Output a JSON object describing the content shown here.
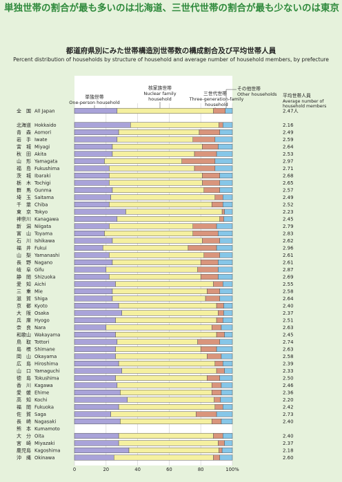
{
  "headline": "単独世帯の割合が最も多いのは北海道、三世代世帯の割合が最も少ないのは東京",
  "chart_data": {
    "type": "bar",
    "stacked": true,
    "orientation": "horizontal",
    "title": "都道府県別にみた世帯構造別世帯数の構成割合及び平均世帯人員",
    "subtitle": "Percent distribution of households by structure of household and average number of household members, by prefecture",
    "series": [
      {
        "name_ja": "単独世帯",
        "name_en": "One-person household",
        "color": "#a9a3d9"
      },
      {
        "name_ja": "核家族世帯",
        "name_en": "Nuclear family household",
        "color": "#f5f0a0"
      },
      {
        "name_ja": "三世代世帯",
        "name_en": "Three-generation-family household",
        "color": "#d9957c"
      },
      {
        "name_ja": "その他世帯",
        "name_en": "Other households",
        "color": "#86c6e8"
      }
    ],
    "avg_header_ja": "平均世帯人員",
    "avg_header_en": "Average number of household members",
    "xticks": [
      "0",
      "20",
      "40",
      "60",
      "80",
      "100%"
    ],
    "xlim": [
      0,
      100
    ],
    "rows": [
      {
        "ja": "全　国",
        "en": "All Japan",
        "avg": "2.47人",
        "values": [
          27,
          61,
          7.5,
          4.5
        ]
      },
      {
        "ja": "北海道",
        "en": "Hokkaido",
        "avg": "2.16",
        "values": [
          35.5,
          56,
          2.5,
          6
        ]
      },
      {
        "ja": "青　森",
        "en": "Aomori",
        "avg": "2.49",
        "values": [
          28,
          51,
          13,
          8
        ]
      },
      {
        "ja": "岩　手",
        "en": "Iwate",
        "avg": "2.59",
        "values": [
          27,
          48,
          14,
          11
        ]
      },
      {
        "ja": "宮　城",
        "en": "Miyagi",
        "avg": "2.64",
        "values": [
          24,
          57,
          10,
          9
        ]
      },
      {
        "ja": "秋　田",
        "en": "Akita",
        "avg": "2.53",
        "values": [
          24,
          52,
          14,
          10
        ]
      },
      {
        "ja": "山　形",
        "en": "Yamagata",
        "avg": "2.97",
        "values": [
          19,
          49,
          21,
          11
        ]
      },
      {
        "ja": "福　島",
        "en": "Fukushima",
        "avg": "2.71",
        "values": [
          22,
          54,
          13,
          11
        ]
      },
      {
        "ja": "茨　城",
        "en": "Ibaraki",
        "avg": "2.68",
        "values": [
          22,
          59,
          11,
          8
        ]
      },
      {
        "ja": "栃　木",
        "en": "Tochigi",
        "avg": "2.65",
        "values": [
          22,
          59,
          11,
          8
        ]
      },
      {
        "ja": "群　馬",
        "en": "Gunma",
        "avg": "2.57",
        "values": [
          24,
          58,
          10,
          8
        ]
      },
      {
        "ja": "埼　玉",
        "en": "Saitama",
        "avg": "2.49",
        "values": [
          23,
          66,
          5,
          6
        ]
      },
      {
        "ja": "千　葉",
        "en": "Chiba",
        "avg": "2.52",
        "values": [
          22,
          65,
          7,
          6
        ]
      },
      {
        "ja": "東　京",
        "en": "Tokyo",
        "avg": "2.23",
        "values": [
          32.5,
          61,
          1.5,
          5
        ]
      },
      {
        "ja": "神奈川",
        "en": "Kanagawa",
        "avg": "2.45",
        "values": [
          27,
          65,
          2.5,
          5.5
        ]
      },
      {
        "ja": "新　潟",
        "en": "Niigata",
        "avg": "2.79",
        "values": [
          22,
          53,
          15,
          10
        ]
      },
      {
        "ja": "富　山",
        "en": "Toyama",
        "avg": "2.83",
        "values": [
          19,
          56,
          16,
          9
        ]
      },
      {
        "ja": "石　川",
        "en": "Ishikawa",
        "avg": "2.62",
        "values": [
          24,
          57,
          11,
          8
        ]
      },
      {
        "ja": "福　井",
        "en": "Fukui",
        "avg": "2.96",
        "values": [
          18,
          54,
          18,
          10
        ]
      },
      {
        "ja": "山　梨",
        "en": "Yamanashi",
        "avg": "2.61",
        "values": [
          22,
          60,
          10,
          8
        ]
      },
      {
        "ja": "長　野",
        "en": "Nagano",
        "avg": "2.61",
        "values": [
          24,
          56,
          11,
          9
        ]
      },
      {
        "ja": "岐　阜",
        "en": "Gifu",
        "avg": "2.87",
        "values": [
          20,
          58,
          13,
          9
        ]
      },
      {
        "ja": "静　岡",
        "en": "Shizuoka",
        "avg": "2.69",
        "values": [
          22,
          58,
          11,
          9
        ]
      },
      {
        "ja": "愛　知",
        "en": "Aichi",
        "avg": "2.55",
        "values": [
          26,
          62,
          6,
          6
        ]
      },
      {
        "ja": "三　重",
        "en": "Mie",
        "avg": "2.58",
        "values": [
          24,
          60,
          8,
          8
        ]
      },
      {
        "ja": "滋　賀",
        "en": "Shiga",
        "avg": "2.64",
        "values": [
          24,
          59,
          9,
          8
        ]
      },
      {
        "ja": "京　都",
        "en": "Kyoto",
        "avg": "2.40",
        "values": [
          28,
          62,
          4.5,
          5.5
        ]
      },
      {
        "ja": "大　阪",
        "en": "Osaka",
        "avg": "2.37",
        "values": [
          30,
          61,
          3.5,
          5.5
        ]
      },
      {
        "ja": "兵　庫",
        "en": "Hyogo",
        "avg": "2.51",
        "values": [
          26,
          64,
          4,
          6
        ]
      },
      {
        "ja": "奈　良",
        "en": "Nara",
        "avg": "2.63",
        "values": [
          20,
          67,
          6,
          7
        ]
      },
      {
        "ja": "和歌山",
        "en": "Wakayama",
        "avg": "2.45",
        "values": [
          26,
          64,
          5,
          5
        ]
      },
      {
        "ja": "鳥　取",
        "en": "Tottori",
        "avg": "2.74",
        "values": [
          27,
          51,
          14,
          8
        ]
      },
      {
        "ja": "島　根",
        "en": "Shimane",
        "avg": "2.63",
        "values": [
          26,
          54,
          10,
          10
        ]
      },
      {
        "ja": "岡　山",
        "en": "Okayama",
        "avg": "2.58",
        "values": [
          26,
          58,
          9,
          7
        ]
      },
      {
        "ja": "広　島",
        "en": "Hiroshima",
        "avg": "2.39",
        "values": [
          28,
          61,
          5,
          6
        ]
      },
      {
        "ja": "山　口",
        "en": "Yamaguchi",
        "avg": "2.33",
        "values": [
          30,
          60,
          5,
          5
        ]
      },
      {
        "ja": "徳　島",
        "en": "Tokushima",
        "avg": "2.50",
        "values": [
          26,
          58,
          8,
          8
        ]
      },
      {
        "ja": "香　川",
        "en": "Kagawa",
        "avg": "2.46",
        "values": [
          27,
          60,
          6,
          7
        ]
      },
      {
        "ja": "愛　媛",
        "en": "Ehime",
        "avg": "2.36",
        "values": [
          29,
          58,
          6,
          7
        ]
      },
      {
        "ja": "高　知",
        "en": "Kochi",
        "avg": "2.20",
        "values": [
          33.5,
          55,
          4,
          7.5
        ]
      },
      {
        "ja": "福　岡",
        "en": "Fukuoka",
        "avg": "2.42",
        "values": [
          28,
          61,
          5,
          6
        ]
      },
      {
        "ja": "佐　賀",
        "en": "Saga",
        "avg": "2.73",
        "values": [
          23,
          54,
          13,
          10
        ]
      },
      {
        "ja": "長　崎",
        "en": "Nagasaki",
        "avg": "2.40",
        "values": [
          29,
          58,
          6,
          7
        ]
      },
      {
        "ja": "熊　本",
        "en": "Kumamoto",
        "avg": "",
        "values": null
      },
      {
        "ja": "大　分",
        "en": "Oita",
        "avg": "2.40",
        "values": [
          28,
          60,
          6,
          6
        ]
      },
      {
        "ja": "宮　崎",
        "en": "Miyazaki",
        "avg": "2.37",
        "values": [
          28,
          63,
          4,
          5
        ]
      },
      {
        "ja": "鹿児島",
        "en": "Kagoshima",
        "avg": "2.18",
        "values": [
          34.5,
          57,
          2,
          6.5
        ]
      },
      {
        "ja": "沖　縄",
        "en": "Okinawa",
        "avg": "2.60",
        "values": [
          25,
          63,
          4,
          8
        ]
      }
    ]
  }
}
